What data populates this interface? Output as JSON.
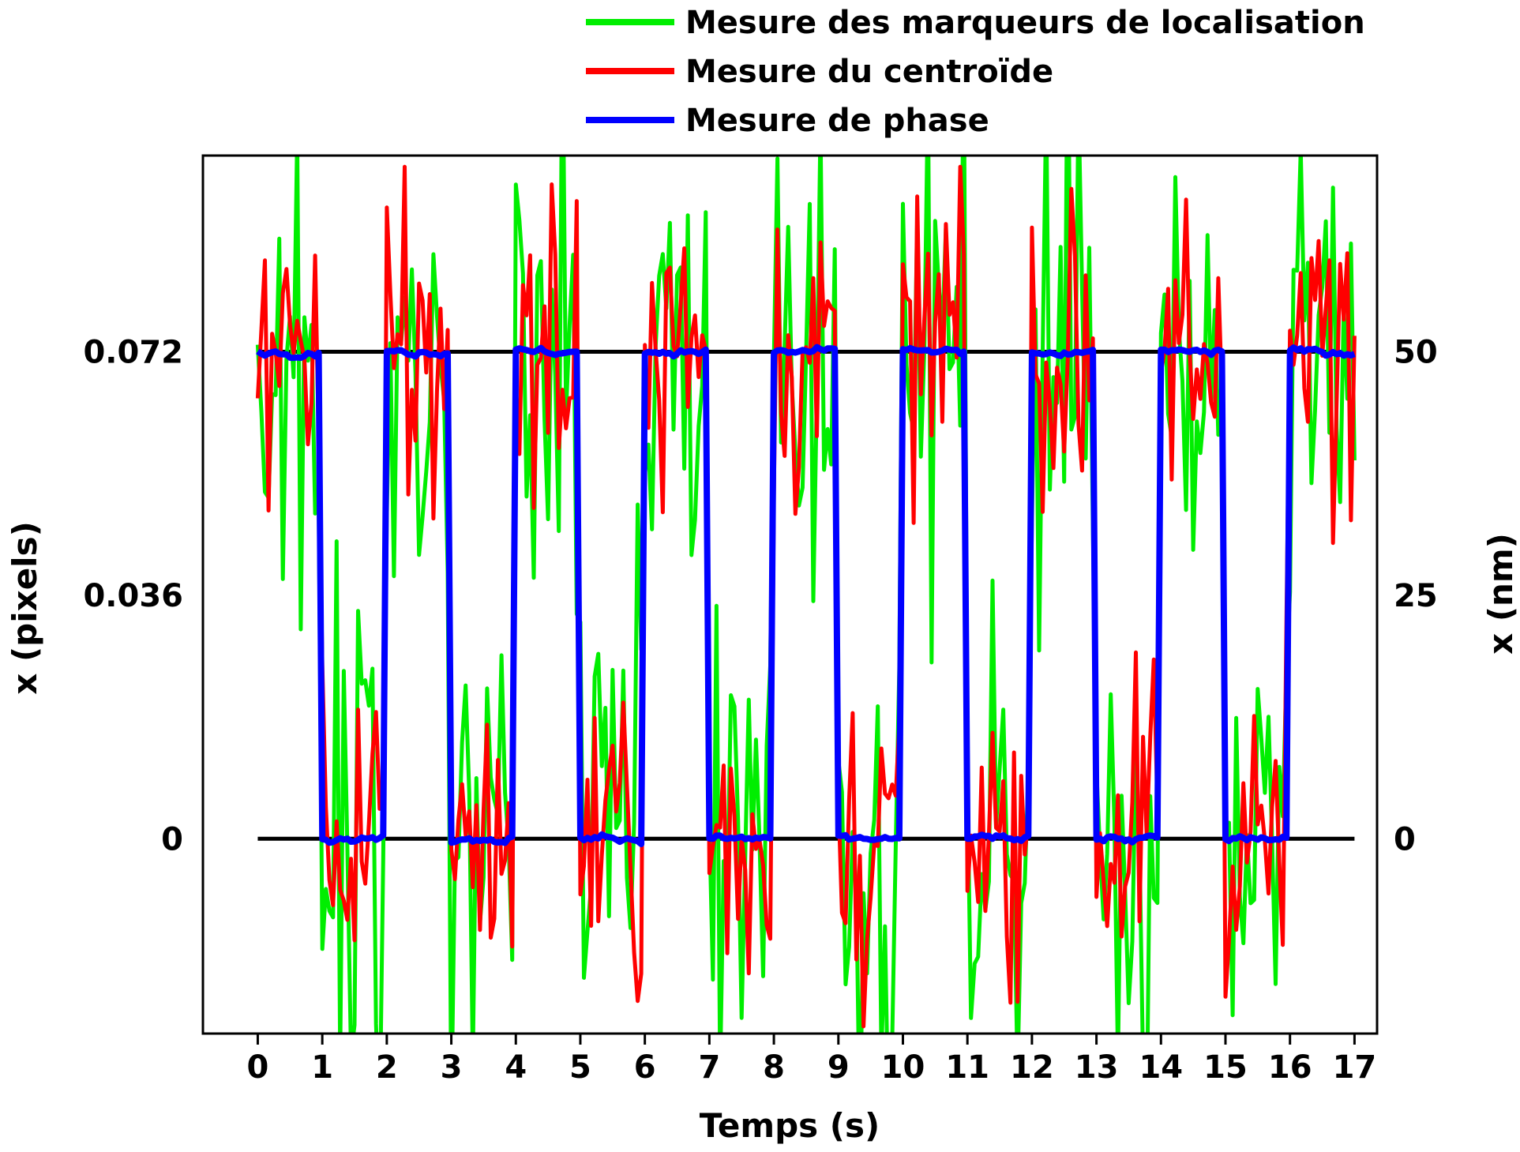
{
  "chart_data": {
    "type": "line",
    "title": "",
    "xlabel": "Temps (s)",
    "ylabel": "x (pixels)",
    "ylabel_right": "x (nm)",
    "xlim": [
      -0.85,
      17.35
    ],
    "ylim": [
      -0.0288,
      0.101
    ],
    "xticks": [
      "0",
      "1",
      "2",
      "3",
      "4",
      "5",
      "6",
      "7",
      "8",
      "9",
      "10",
      "11",
      "12",
      "13",
      "14",
      "15",
      "16",
      "17"
    ],
    "yticks_left": [
      {
        "value": 0,
        "label": "0"
      },
      {
        "value": 0.036,
        "label": "0.036"
      },
      {
        "value": 0.072,
        "label": "0.072"
      }
    ],
    "yticks_right": [
      {
        "value": 0,
        "label": "0"
      },
      {
        "value": 25,
        "label": "25"
      },
      {
        "value": 50,
        "label": "50"
      }
    ],
    "right_axis_scale_nm_per_pixel": 694.4,
    "reference_lines": [
      0,
      0.072
    ],
    "grid": false,
    "legend_position": "top-right, above plot",
    "period_s": 2,
    "step_amplitude_pixels": 0.072,
    "series": [
      {
        "name": "Mesure des marqueurs de localisation",
        "color": "#00ee00",
        "noise_std_pixels": 0.019,
        "points_per_second": 18
      },
      {
        "name": "Mesure du centroïde",
        "color": "#ff0000",
        "noise_std_pixels": 0.0125,
        "points_per_second": 18
      },
      {
        "name": "Mesure de phase",
        "color": "#0000ff",
        "noise_std_pixels": 0.0006,
        "points_per_second": 18
      }
    ]
  }
}
